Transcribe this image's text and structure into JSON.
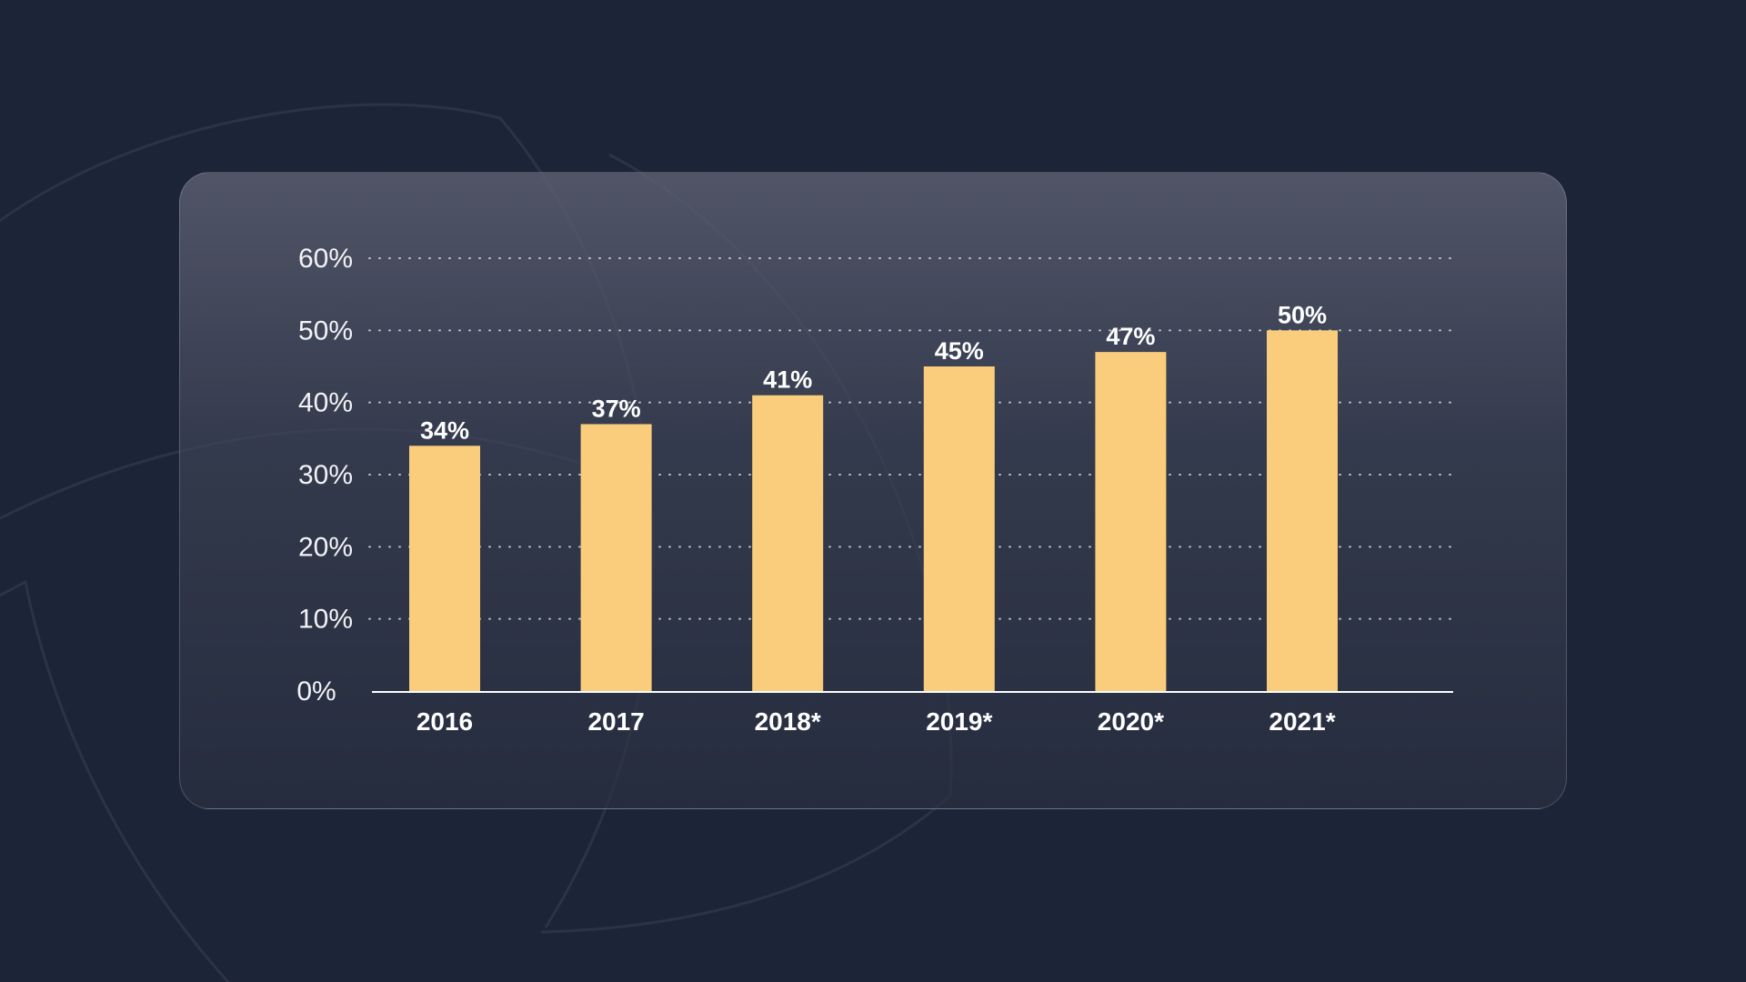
{
  "colors": {
    "background": "#1c2437",
    "bar": "#f9cd7b",
    "text": "#ffffff",
    "gridline": "#e6e8ee"
  },
  "chart_data": {
    "type": "bar",
    "categories": [
      "2016",
      "2017",
      "2018*",
      "2019*",
      "2020*",
      "2021*"
    ],
    "values": [
      34,
      37,
      41,
      45,
      47,
      50
    ],
    "value_labels": [
      "34%",
      "37%",
      "41%",
      "45%",
      "47%",
      "50%"
    ],
    "yticks": [
      0,
      10,
      20,
      30,
      40,
      50,
      60
    ],
    "ytick_labels": [
      "0%",
      "10%",
      "20%",
      "30%",
      "40%",
      "50%",
      "60%"
    ],
    "ylim": [
      0,
      60
    ],
    "title": "",
    "xlabel": "",
    "ylabel": "",
    "grid": "dotted horizontal",
    "legend": "none"
  }
}
